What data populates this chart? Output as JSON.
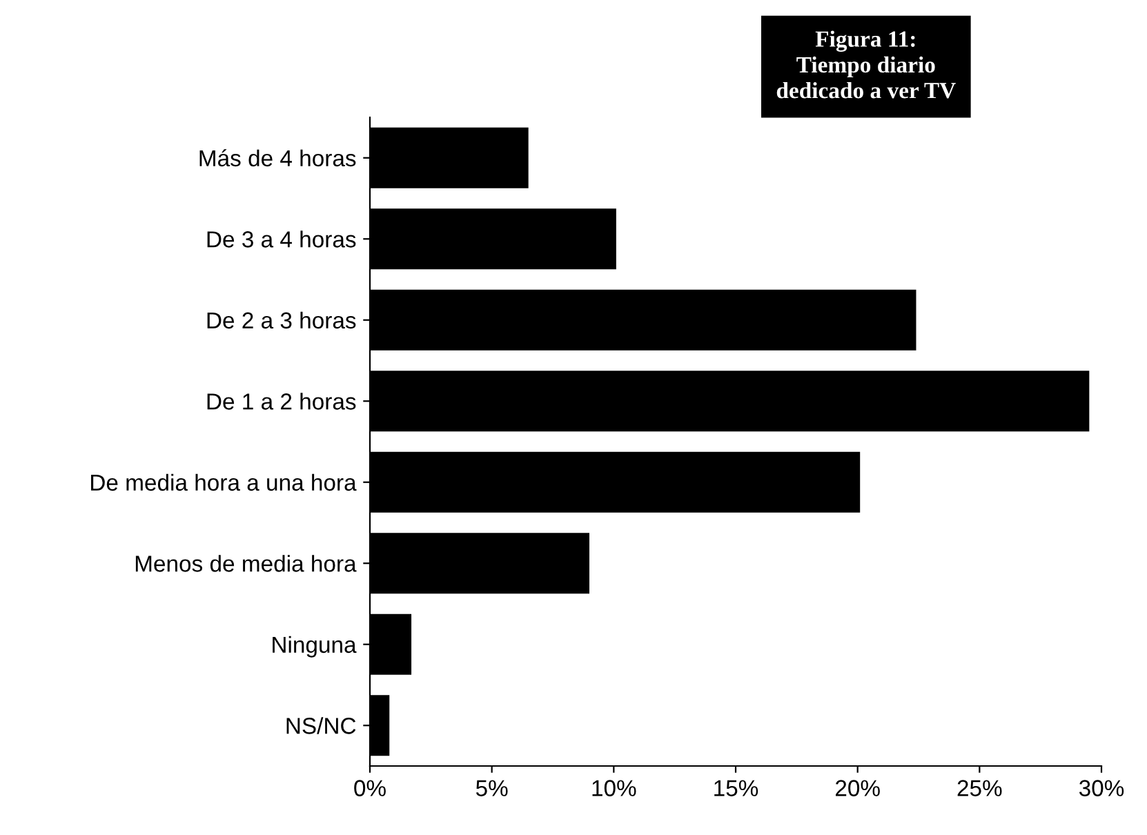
{
  "chart_data": {
    "type": "bar",
    "orientation": "horizontal",
    "title": "Figura 11:\nTiempo diario\ndedicado a ver TV",
    "categories": [
      "Más de 4 horas",
      "De 3 a 4 horas",
      "De 2 a 3 horas",
      "De 1 a 2 horas",
      "De media hora a una hora",
      "Menos de media hora",
      "Ninguna",
      "NS/NC"
    ],
    "values": [
      6.5,
      10.1,
      22.4,
      29.5,
      20.1,
      9.0,
      1.7,
      0.8
    ],
    "color": "#000000",
    "xlim": [
      0,
      30
    ],
    "xticks": [
      {
        "value": 0,
        "label": "0%"
      },
      {
        "value": 5,
        "label": "5%"
      },
      {
        "value": 10,
        "label": "10%"
      },
      {
        "value": 15,
        "label": "15%"
      },
      {
        "value": 20,
        "label": "20%"
      },
      {
        "value": 25,
        "label": "25%"
      },
      {
        "value": 30,
        "label": "30%"
      }
    ],
    "grid": false,
    "legend": false
  }
}
